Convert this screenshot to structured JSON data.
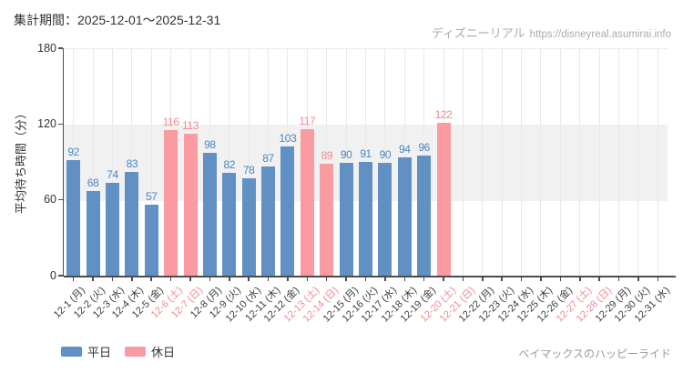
{
  "header": {
    "title": "集計期間：2025-12-01～2025-12-31"
  },
  "watermark": {
    "site_name": "ディズニーリアル",
    "url": "https://disneyreal.asumirai.info"
  },
  "footer": {
    "attraction": "ベイマックスのハッピーライド"
  },
  "chart_data": {
    "type": "bar",
    "title": "",
    "xlabel": "",
    "ylabel": "平均待ち時間（分）",
    "ylim": [
      0,
      180
    ],
    "yticks": [
      0,
      60,
      120,
      180
    ],
    "band": {
      "from": 60,
      "to": 120
    },
    "grid": "vertical-category-lines",
    "legend_position": "bottom-left",
    "categories": [
      "12-1 (月)",
      "12-2 (火)",
      "12-3 (水)",
      "12-4 (木)",
      "12-5 (金)",
      "12-6 (土)",
      "12-7 (日)",
      "12-8 (月)",
      "12-9 (火)",
      "12-10 (水)",
      "12-11 (木)",
      "12-12 (金)",
      "12-13 (土)",
      "12-14 (日)",
      "12-15 (月)",
      "12-16 (火)",
      "12-17 (水)",
      "12-18 (木)",
      "12-19 (金)",
      "12-20 (土)",
      "12-21 (日)",
      "12-22 (月)",
      "12-23 (火)",
      "12-24 (水)",
      "12-25 (木)",
      "12-26 (金)",
      "12-27 (土)",
      "12-28 (日)",
      "12-29 (月)",
      "12-30 (火)",
      "12-31 (水)"
    ],
    "values": [
      92,
      68,
      74,
      83,
      57,
      116,
      113,
      98,
      82,
      78,
      87,
      103,
      117,
      89,
      90,
      91,
      90,
      94,
      96,
      122,
      null,
      null,
      null,
      null,
      null,
      null,
      null,
      null,
      null,
      null,
      null
    ],
    "day_types": [
      "weekday",
      "weekday",
      "weekday",
      "weekday",
      "weekday",
      "holiday",
      "holiday",
      "weekday",
      "weekday",
      "weekday",
      "weekday",
      "weekday",
      "holiday",
      "holiday",
      "weekday",
      "weekday",
      "weekday",
      "weekday",
      "weekday",
      "holiday",
      "holiday",
      "weekday",
      "weekday",
      "weekday",
      "weekday",
      "weekday",
      "holiday",
      "holiday",
      "weekday",
      "weekday",
      "weekday"
    ],
    "legend": [
      {
        "label": "平日",
        "type": "weekday",
        "color": "#6090c4"
      },
      {
        "label": "休日",
        "type": "holiday",
        "color": "#f99ba0"
      }
    ],
    "colors": {
      "bar_weekday": "#6090c4",
      "bar_holiday": "#f99ba0",
      "value_label_weekday": "#4a86c2",
      "value_label_holiday": "#f8868f",
      "tick_label_weekday": "#3c3c3c",
      "tick_label_holiday": "#f28992",
      "band": "#f1f1f1",
      "gridline": "#e9e9e9",
      "axis": "#4c4c4c"
    }
  }
}
